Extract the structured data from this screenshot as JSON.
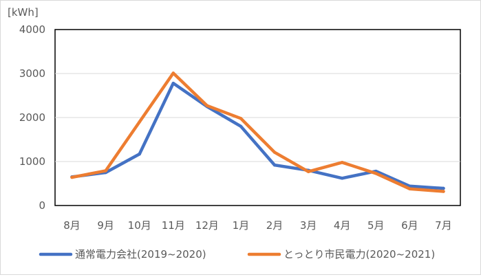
{
  "chart_data": {
    "type": "line",
    "ylabel": "[kWh]",
    "ylim": [
      0,
      4000
    ],
    "yticks": [
      "0",
      "1000",
      "2000",
      "3000",
      "4000"
    ],
    "categories": [
      "8月",
      "9月",
      "10月",
      "11月",
      "12月",
      "1月",
      "2月",
      "3月",
      "4月",
      "5月",
      "6月",
      "7月"
    ],
    "series": [
      {
        "name": "通常電力会社(2019~2020)",
        "color": "#4472c4",
        "values": [
          650,
          750,
          1170,
          2780,
          2250,
          1800,
          920,
          800,
          620,
          780,
          440,
          390
        ]
      },
      {
        "name": "とっとり市民電力(2020~2021)",
        "color": "#ed7d31",
        "values": [
          640,
          790,
          1900,
          3010,
          2270,
          1980,
          1210,
          770,
          980,
          730,
          380,
          320
        ]
      }
    ],
    "grid": true,
    "legend_position": "bottom"
  }
}
